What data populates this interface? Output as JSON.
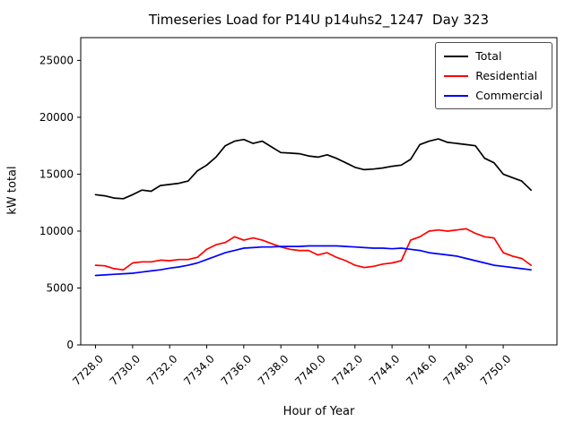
{
  "chart_data": {
    "type": "line",
    "title": "Timeseries Load for P14U p14uhs2_1247  Day 323",
    "xlabel": "Hour of Year",
    "ylabel": "kW total",
    "grid": false,
    "legend_position": "upper right",
    "xlim": [
      7727.2,
      7752.9
    ],
    "ylim": [
      0,
      27000
    ],
    "xticks": [
      7728,
      7730,
      7732,
      7734,
      7736,
      7738,
      7740,
      7742,
      7744,
      7746,
      7748,
      7750
    ],
    "xtick_labels": [
      "7728.0",
      "7730.0",
      "7732.0",
      "7734.0",
      "7736.0",
      "7738.0",
      "7740.0",
      "7742.0",
      "7744.0",
      "7746.0",
      "7748.0",
      "7750.0"
    ],
    "yticks": [
      0,
      5000,
      10000,
      15000,
      20000,
      25000
    ],
    "ytick_labels": [
      "0",
      "5000",
      "10000",
      "15000",
      "20000",
      "25000"
    ],
    "x": [
      7728.0,
      7728.5,
      7729.0,
      7729.5,
      7730.0,
      7730.5,
      7731.0,
      7731.5,
      7732.0,
      7732.5,
      7733.0,
      7733.5,
      7734.0,
      7734.5,
      7735.0,
      7735.5,
      7736.0,
      7736.5,
      7737.0,
      7737.5,
      7738.0,
      7738.5,
      7739.0,
      7739.5,
      7740.0,
      7740.5,
      7741.0,
      7741.5,
      7742.0,
      7742.5,
      7743.0,
      7743.5,
      7744.0,
      7744.5,
      7745.0,
      7745.5,
      7746.0,
      7746.5,
      7747.0,
      7747.5,
      7748.0,
      7748.5,
      7749.0,
      7749.5,
      7750.0,
      7750.5,
      7751.0,
      7751.5
    ],
    "series": [
      {
        "name": "Total",
        "color": "#000000",
        "values": [
          13200,
          13100,
          12900,
          12850,
          13200,
          13600,
          13500,
          14000,
          14100,
          14200,
          14400,
          15300,
          15800,
          16500,
          17500,
          17900,
          18050,
          17700,
          17900,
          17400,
          16900,
          16850,
          16800,
          16600,
          16500,
          16700,
          16400,
          16000,
          15600,
          15400,
          15450,
          15550,
          15700,
          15800,
          16300,
          17600,
          17900,
          18100,
          17800,
          17700,
          17600,
          17500,
          16400,
          16000,
          15000,
          14700,
          14400,
          13600
        ]
      },
      {
        "name": "Residential",
        "color": "#ff0000",
        "values": [
          7000,
          6950,
          6700,
          6600,
          7200,
          7300,
          7300,
          7450,
          7400,
          7500,
          7500,
          7700,
          8400,
          8800,
          9000,
          9500,
          9200,
          9400,
          9200,
          8900,
          8600,
          8400,
          8300,
          8300,
          7900,
          8100,
          7700,
          7400,
          7000,
          6800,
          6900,
          7100,
          7200,
          7400,
          9200,
          9500,
          10000,
          10100,
          10000,
          10100,
          10200,
          9800,
          9500,
          9400,
          8100,
          7800,
          7600,
          7000
        ]
      },
      {
        "name": "Commercial",
        "color": "#0000ff",
        "values": [
          6100,
          6150,
          6200,
          6250,
          6300,
          6400,
          6500,
          6600,
          6750,
          6850,
          7000,
          7200,
          7500,
          7800,
          8100,
          8300,
          8500,
          8550,
          8600,
          8600,
          8650,
          8650,
          8650,
          8700,
          8700,
          8700,
          8700,
          8650,
          8600,
          8550,
          8500,
          8500,
          8450,
          8500,
          8400,
          8300,
          8100,
          8000,
          7900,
          7800,
          7600,
          7400,
          7200,
          7000,
          6900,
          6800,
          6700,
          6600
        ]
      }
    ]
  }
}
